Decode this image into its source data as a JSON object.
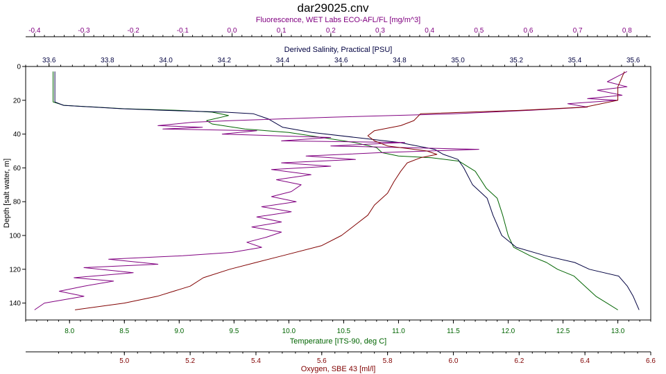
{
  "chart_data": {
    "type": "line",
    "title": "dar29025.cnv",
    "grid": false,
    "y_axis": {
      "label": "Depth [salt water, m]",
      "range": [
        0,
        150
      ],
      "ticks": [
        0,
        20,
        40,
        60,
        80,
        100,
        120,
        140
      ],
      "inverted": true
    },
    "x_axes": [
      {
        "id": "fluorescence",
        "label": "Fluorescence, WET Labs ECO-AFL/FL [mg/m^3]",
        "position": "top-1",
        "range": [
          -0.418,
          0.848
        ],
        "ticks": [
          -0.4,
          -0.3,
          -0.2,
          -0.1,
          0.0,
          0.1,
          0.2,
          0.3,
          0.4,
          0.5,
          0.6,
          0.7,
          0.8
        ],
        "tick_labels": [
          "-0.4",
          "-0.3",
          "-0.2",
          "-0.1",
          "0.0",
          "0.1",
          "0.2",
          "0.3",
          "0.4",
          "0.5",
          "0.6",
          "0.7",
          "0.8"
        ],
        "color": "#800080"
      },
      {
        "id": "salinity",
        "label": "Derived Salinity, Practical [PSU]",
        "position": "top-2",
        "range": [
          33.52,
          35.66
        ],
        "ticks": [
          33.6,
          33.8,
          34.0,
          34.2,
          34.4,
          34.6,
          34.8,
          35.0,
          35.2,
          35.4,
          35.6
        ],
        "tick_labels": [
          "33.6",
          "33.8",
          "34.0",
          "34.2",
          "34.4",
          "34.6",
          "34.8",
          "35.0",
          "35.2",
          "35.4",
          "35.6"
        ],
        "color": "#000040"
      },
      {
        "id": "temperature",
        "label": "Temperature [ITS-90, deg C]",
        "position": "bottom-1",
        "range": [
          7.6,
          13.3
        ],
        "ticks": [
          8.0,
          8.5,
          9.0,
          9.5,
          10.0,
          10.5,
          11.0,
          11.5,
          12.0,
          12.5,
          13.0
        ],
        "tick_labels": [
          "8.0",
          "8.5",
          "9.0",
          "9.5",
          "10.0",
          "10.5",
          "11.0",
          "11.5",
          "12.0",
          "12.5",
          "13.0"
        ],
        "color": "#006400"
      },
      {
        "id": "oxygen",
        "label": "Oxygen, SBE 43 [ml/l]",
        "position": "bottom-2",
        "range": [
          4.7,
          6.6
        ],
        "ticks": [
          5.0,
          5.2,
          5.4,
          5.6,
          5.8,
          6.0,
          6.2,
          6.4,
          6.6
        ],
        "tick_labels": [
          "5.0",
          "5.2",
          "5.4",
          "5.6",
          "5.8",
          "6.0",
          "6.2",
          "6.4",
          "6.6"
        ],
        "color": "#800000"
      }
    ],
    "series": [
      {
        "axis": "temperature",
        "color": "#006400",
        "points": [
          [
            7.85,
            3
          ],
          [
            7.85,
            21
          ],
          [
            7.95,
            23
          ],
          [
            8.5,
            25
          ],
          [
            9.0,
            26
          ],
          [
            9.3,
            27
          ],
          [
            9.45,
            29
          ],
          [
            9.25,
            32
          ],
          [
            9.3,
            34
          ],
          [
            9.6,
            37
          ],
          [
            10.0,
            39
          ],
          [
            10.3,
            42
          ],
          [
            10.6,
            45
          ],
          [
            10.8,
            48
          ],
          [
            10.85,
            51
          ],
          [
            11.0,
            53
          ],
          [
            11.3,
            54
          ],
          [
            11.55,
            56
          ],
          [
            11.7,
            62
          ],
          [
            11.8,
            72
          ],
          [
            11.9,
            78
          ],
          [
            11.95,
            88
          ],
          [
            12.0,
            100
          ],
          [
            12.05,
            107
          ],
          [
            12.2,
            112
          ],
          [
            12.35,
            116
          ],
          [
            12.45,
            120
          ],
          [
            12.6,
            124
          ],
          [
            12.7,
            130
          ],
          [
            12.8,
            136
          ],
          [
            12.9,
            140
          ],
          [
            13.0,
            144
          ]
        ]
      },
      {
        "axis": "salinity",
        "color": "#000040",
        "points": [
          [
            33.62,
            3
          ],
          [
            33.62,
            21
          ],
          [
            33.65,
            23
          ],
          [
            33.85,
            25
          ],
          [
            34.0,
            26
          ],
          [
            34.2,
            27
          ],
          [
            34.3,
            28
          ],
          [
            34.35,
            31
          ],
          [
            34.4,
            36
          ],
          [
            34.5,
            39
          ],
          [
            34.65,
            42
          ],
          [
            34.8,
            45
          ],
          [
            34.92,
            49
          ],
          [
            34.95,
            52
          ],
          [
            35.0,
            55
          ],
          [
            35.02,
            60
          ],
          [
            35.05,
            70
          ],
          [
            35.1,
            78
          ],
          [
            35.12,
            88
          ],
          [
            35.15,
            100
          ],
          [
            35.2,
            107
          ],
          [
            35.3,
            112
          ],
          [
            35.4,
            116
          ],
          [
            35.45,
            120
          ],
          [
            35.55,
            124
          ],
          [
            35.58,
            130
          ],
          [
            35.6,
            136
          ],
          [
            35.62,
            144
          ]
        ]
      },
      {
        "axis": "fluorescence",
        "color": "#800080",
        "points": [
          [
            0.8,
            3
          ],
          [
            0.78,
            6
          ],
          [
            0.76,
            9
          ],
          [
            0.8,
            12
          ],
          [
            0.74,
            14
          ],
          [
            0.79,
            17
          ],
          [
            0.72,
            19
          ],
          [
            0.78,
            20
          ],
          [
            0.68,
            22
          ],
          [
            0.72,
            24
          ],
          [
            0.6,
            26
          ],
          [
            0.45,
            28
          ],
          [
            0.2,
            30
          ],
          [
            0.0,
            32
          ],
          [
            -0.08,
            33
          ],
          [
            -0.15,
            35
          ],
          [
            -0.06,
            36
          ],
          [
            -0.14,
            37
          ],
          [
            0.05,
            38
          ],
          [
            -0.02,
            40
          ],
          [
            0.2,
            42
          ],
          [
            0.1,
            44
          ],
          [
            0.35,
            45
          ],
          [
            0.2,
            47
          ],
          [
            0.5,
            49
          ],
          [
            0.3,
            51
          ],
          [
            0.15,
            53
          ],
          [
            0.25,
            55
          ],
          [
            0.1,
            57
          ],
          [
            0.2,
            59
          ],
          [
            0.08,
            61
          ],
          [
            0.16,
            64
          ],
          [
            0.09,
            67
          ],
          [
            0.14,
            70
          ],
          [
            0.12,
            74
          ],
          [
            0.08,
            77
          ],
          [
            0.13,
            80
          ],
          [
            0.06,
            83
          ],
          [
            0.12,
            86
          ],
          [
            0.05,
            89
          ],
          [
            0.1,
            92
          ],
          [
            0.04,
            95
          ],
          [
            0.1,
            98
          ],
          [
            0.07,
            101
          ],
          [
            0.03,
            104
          ],
          [
            0.06,
            107
          ],
          [
            0.0,
            110
          ],
          [
            -0.1,
            112
          ],
          [
            -0.25,
            114
          ],
          [
            -0.15,
            117
          ],
          [
            -0.3,
            119
          ],
          [
            -0.2,
            122
          ],
          [
            -0.32,
            125
          ],
          [
            -0.24,
            127
          ],
          [
            -0.3,
            130
          ],
          [
            -0.35,
            133
          ],
          [
            -0.3,
            136
          ],
          [
            -0.38,
            140
          ],
          [
            -0.4,
            144
          ]
        ]
      },
      {
        "axis": "oxygen",
        "color": "#800000",
        "points": [
          [
            6.52,
            3
          ],
          [
            6.5,
            12
          ],
          [
            6.5,
            20
          ],
          [
            6.4,
            24
          ],
          [
            6.2,
            26
          ],
          [
            5.9,
            28
          ],
          [
            5.88,
            32
          ],
          [
            5.84,
            35
          ],
          [
            5.76,
            38
          ],
          [
            5.74,
            41
          ],
          [
            5.76,
            44
          ],
          [
            5.8,
            47
          ],
          [
            5.92,
            50
          ],
          [
            5.95,
            52
          ],
          [
            5.9,
            54
          ],
          [
            5.86,
            57
          ],
          [
            5.84,
            62
          ],
          [
            5.82,
            68
          ],
          [
            5.8,
            75
          ],
          [
            5.76,
            82
          ],
          [
            5.74,
            88
          ],
          [
            5.7,
            94
          ],
          [
            5.66,
            100
          ],
          [
            5.6,
            106
          ],
          [
            5.48,
            112
          ],
          [
            5.4,
            116
          ],
          [
            5.32,
            120
          ],
          [
            5.24,
            125
          ],
          [
            5.2,
            130
          ],
          [
            5.1,
            136
          ],
          [
            5.0,
            140
          ],
          [
            4.85,
            144
          ]
        ]
      }
    ]
  }
}
